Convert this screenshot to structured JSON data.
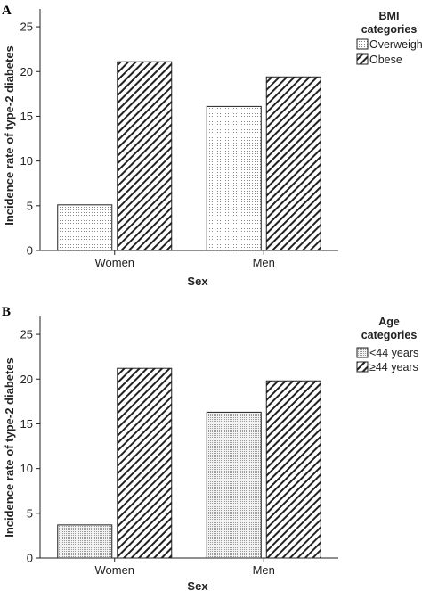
{
  "chart_data": [
    {
      "type": "bar",
      "panel_label": "A",
      "categories": [
        "Women",
        "Men"
      ],
      "series": [
        {
          "name": "Overweight",
          "values": [
            5.1,
            16.1
          ],
          "pattern": "dots"
        },
        {
          "name": "Obese",
          "values": [
            21.1,
            19.4
          ],
          "pattern": "hatch"
        }
      ],
      "xlabel": "Sex",
      "ylabel": "Incidence rate of type-2 diabetes",
      "ylim": [
        0,
        27
      ],
      "yticks": [
        0,
        5,
        10,
        15,
        20,
        25
      ],
      "legend_title": [
        "BMI",
        "categories"
      ],
      "legend_position": "top-right",
      "grid": false
    },
    {
      "type": "bar",
      "panel_label": "B",
      "categories": [
        "Women",
        "Men"
      ],
      "series": [
        {
          "name": "<44 years",
          "values": [
            3.7,
            16.3
          ],
          "pattern": "dense-dots"
        },
        {
          "name": "≥44 years",
          "values": [
            21.2,
            19.8
          ],
          "pattern": "hatch"
        }
      ],
      "xlabel": "Sex",
      "ylabel": "Incidence rate of type-2 diabetes",
      "ylim": [
        0,
        27
      ],
      "yticks": [
        0,
        5,
        10,
        15,
        20,
        25
      ],
      "legend_title": [
        "Age",
        "categories"
      ],
      "legend_position": "top-right",
      "grid": false
    }
  ]
}
